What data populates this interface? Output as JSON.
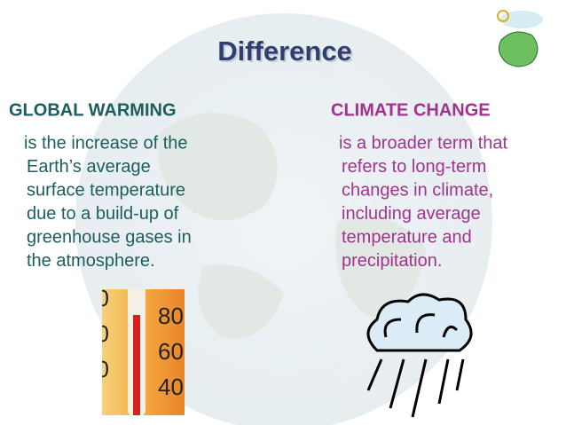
{
  "slide": {
    "title": "Difference",
    "left": {
      "heading": "GLOBAL WARMING",
      "lines": [
        "is the increase of the",
        "Earth’s average",
        "surface temperature",
        "due to a build-up of",
        "greenhouse gases in",
        "the atmosphere."
      ]
    },
    "right": {
      "heading": "CLIMATE CHANGE",
      "lines": [
        "is a broader term that",
        "refers to long-term",
        "changes in climate,",
        "including average",
        "temperature and",
        "precipitation."
      ]
    },
    "thermometer": {
      "labels": [
        "80",
        "60",
        "40"
      ]
    }
  }
}
